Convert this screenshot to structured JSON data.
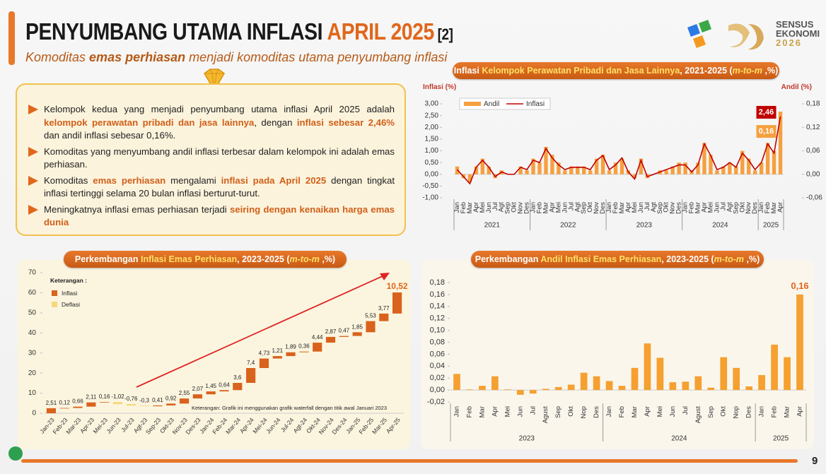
{
  "header": {
    "title": [
      "PENYUMBANG UTAMA INFLASI ",
      "APRIL 2025",
      " [2]"
    ],
    "subtitle": [
      "Komoditas ",
      "emas perhiasan",
      " menjadi komoditas utama penyumbang inflasi"
    ],
    "logo": [
      "SENSUS",
      "EKONOMI",
      "2026"
    ]
  },
  "bullets": [
    [
      {
        "text": "Kelompok kedua yang menjadi penyumbang utama inflasi April 2025 adalah "
      },
      {
        "text": "kelompok perawatan pribadi dan jasa lainnya",
        "bold": true
      },
      {
        "text": ", dengan "
      },
      {
        "text": "inflasi sebesar 2,46%",
        "bold": true
      },
      {
        "text": " dan andil inflasi sebesar 0,16%."
      }
    ],
    [
      {
        "text": "Komoditas yang menyumbang andil inflasi terbesar dalam kelompok ini adalah emas perhiasan."
      }
    ],
    [
      {
        "text": "Komoditas "
      },
      {
        "text": "emas perhiasan",
        "bold": true
      },
      {
        "text": " mengalami "
      },
      {
        "text": "inflasi pada April 2025",
        "bold": true
      },
      {
        "text": " dengan tingkat inflasi tertinggi selama 20 bulan inflasi berturut-turut."
      }
    ],
    [
      {
        "text": "Meningkatnya inflasi emas perhiasan terjadi "
      },
      {
        "text": "seiring dengan kenaikan harga emas dunia",
        "bold": true
      }
    ]
  ],
  "page_number": "9",
  "chart_data": [
    {
      "type": "combo",
      "title": [
        {
          "text": "Inflasi "
        },
        {
          "text": "Kelompok Perawatan Pribadi dan Jasa Lainnya",
          "highlight": true
        },
        {
          "text": ", 2021-2025 ("
        },
        {
          "text": "m-to-m",
          "highlight": true
        },
        {
          "text": " ,%)"
        }
      ],
      "ylabel": "Inflasi (%)",
      "y2label": "Andil (%)",
      "groups": [
        {
          "label": "2021",
          "categories": [
            "Jan",
            "Feb",
            "Mar",
            "Apr",
            "Mei",
            "Jun",
            "Jul",
            "Agt",
            "Sep",
            "Okt",
            "Nov",
            "Des"
          ]
        },
        {
          "label": "2022",
          "categories": [
            "Jan",
            "Feb",
            "Mar",
            "Apr",
            "Mei",
            "Jun",
            "Jul",
            "Agt",
            "Sep",
            "Okt",
            "Nov",
            "Des"
          ]
        },
        {
          "label": "2023",
          "categories": [
            "Jan",
            "Feb",
            "Mar",
            "Apr",
            "Mei",
            "Jun",
            "Jul",
            "Agt",
            "Sep",
            "Okt",
            "Nov",
            "Des"
          ]
        },
        {
          "label": "2024",
          "categories": [
            "Jan",
            "Feb",
            "Mar",
            "Apr",
            "Mei",
            "Jun",
            "Jul",
            "Agt",
            "Sep",
            "Okt",
            "Nov",
            "Des"
          ]
        },
        {
          "label": "2025",
          "categories": [
            "Jan",
            "Feb",
            "Mar",
            "Apr"
          ]
        }
      ],
      "series": [
        {
          "name": "Andil",
          "type": "bar",
          "axis": "y2",
          "color": "#f5a040",
          "values": [
            0.02,
            -0.01,
            -0.02,
            0.02,
            0.04,
            0.02,
            -0.01,
            0.01,
            0.0,
            0.0,
            0.02,
            0.01,
            0.04,
            0.03,
            0.07,
            0.05,
            0.03,
            0.01,
            0.02,
            0.02,
            0.02,
            0.01,
            0.04,
            0.05,
            0.01,
            0.03,
            0.04,
            0.01,
            -0.01,
            0.04,
            -0.01,
            0.0,
            0.01,
            0.01,
            0.02,
            0.03,
            0.03,
            0.01,
            0.03,
            0.08,
            0.05,
            0.01,
            0.02,
            0.03,
            0.02,
            0.06,
            0.04,
            0.01,
            0.03,
            0.08,
            0.06,
            0.16
          ],
          "value_labels": [
            null,
            null,
            null,
            null,
            null,
            null,
            null,
            null,
            null,
            null,
            null,
            null,
            null,
            null,
            null,
            null,
            null,
            null,
            null,
            null,
            null,
            null,
            null,
            null,
            null,
            null,
            null,
            null,
            null,
            null,
            null,
            null,
            null,
            null,
            null,
            null,
            null,
            null,
            null,
            null,
            null,
            null,
            null,
            null,
            null,
            null,
            null,
            null,
            null,
            null,
            null,
            "0,16"
          ]
        },
        {
          "name": "Inflasi",
          "type": "line",
          "color": "#c00000",
          "values": [
            0.2,
            -0.1,
            -0.4,
            0.3,
            0.6,
            0.3,
            -0.1,
            0.1,
            0.0,
            0.0,
            0.3,
            0.2,
            0.6,
            0.5,
            1.1,
            0.7,
            0.4,
            0.2,
            0.3,
            0.3,
            0.3,
            0.2,
            0.6,
            0.8,
            0.2,
            0.4,
            0.7,
            0.1,
            -0.2,
            0.6,
            -0.1,
            0.0,
            0.1,
            0.2,
            0.3,
            0.4,
            0.4,
            0.1,
            0.4,
            1.3,
            0.8,
            0.2,
            0.3,
            0.5,
            0.3,
            0.9,
            0.6,
            0.2,
            0.5,
            1.3,
            0.9,
            2.46
          ],
          "value_labels": [
            null,
            null,
            null,
            null,
            null,
            null,
            null,
            null,
            null,
            null,
            null,
            null,
            null,
            null,
            null,
            null,
            null,
            null,
            null,
            null,
            null,
            null,
            null,
            null,
            null,
            null,
            null,
            null,
            null,
            null,
            null,
            null,
            null,
            null,
            null,
            null,
            null,
            null,
            null,
            null,
            null,
            null,
            null,
            null,
            null,
            null,
            null,
            null,
            null,
            null,
            null,
            "2,46"
          ]
        }
      ],
      "ylim": [
        -1,
        3
      ],
      "yticks": [
        {
          "value": 3,
          "label": "3,00"
        },
        {
          "value": 2.5,
          "label": "2,50"
        },
        {
          "value": 2,
          "label": "2,00"
        },
        {
          "value": 1.5,
          "label": "1,50"
        },
        {
          "value": 1,
          "label": "1,00"
        },
        {
          "value": 0.5,
          "label": "0,50"
        },
        {
          "value": 0,
          "label": "0,00"
        },
        {
          "value": -0.5,
          "label": "-0,50"
        },
        {
          "value": -1,
          "label": "-1,00"
        }
      ],
      "y2lim": [
        -0.06,
        0.18
      ],
      "y2ticks": [
        {
          "value": 0.18,
          "label": "0,18"
        },
        {
          "value": 0.12,
          "label": "0,12"
        },
        {
          "value": 0.06,
          "label": "0,06"
        },
        {
          "value": 0,
          "label": "0,00"
        },
        {
          "value": -0.06,
          "label": "-0,06"
        }
      ],
      "legend": "top-left"
    },
    {
      "type": "waterfall",
      "title": [
        {
          "text": "Perkembangan "
        },
        {
          "text": "Inflasi Emas Perhiasan",
          "highlight": true
        },
        {
          "text": ", 2023-2025 ("
        },
        {
          "text": "m-to-m",
          "highlight": true
        },
        {
          "text": " ,%)"
        }
      ],
      "categories": [
        "Jan-23",
        "Feb-23",
        "Mar-23",
        "Apr-23",
        "Mei-23",
        "Jun-23",
        "Jul-23",
        "Agt-23",
        "Sep-23",
        "Okt-23",
        "Nov-23",
        "Des-23",
        "Jan-24",
        "Feb-24",
        "Mar-24",
        "Apr-24",
        "Mei-24",
        "Jun-24",
        "Jul-24",
        "Agt-24",
        "Okt-24",
        "Nov-24",
        "Des-24",
        "Jan-25",
        "Feb-25",
        "Mar-25",
        "Apr-25"
      ],
      "values": [
        2.51,
        0.12,
        0.66,
        2.11,
        0.16,
        -1.02,
        -0.76,
        -0.3,
        0.41,
        0.92,
        2.55,
        2.07,
        1.45,
        0.64,
        3.6,
        7.4,
        4.73,
        1.21,
        1.89,
        0.36,
        4.44,
        2.87,
        0.47,
        1.85,
        5.53,
        3.77,
        10.52
      ],
      "value_labels": [
        "2,51",
        "0,12",
        "0,66",
        "2,11",
        "0,16",
        "-1,02",
        "-0,76",
        "-0,3",
        "0,41",
        "0,92",
        "2,55",
        "2,07",
        "1,45",
        "0,64",
        "3,6",
        "7,4",
        "4,73",
        "1,21",
        "1,89",
        "0,36",
        "4,44",
        "2,87",
        "0,47",
        "1,85",
        "5,53",
        "3,77",
        "10,52"
      ],
      "increase_name": "Inflasi",
      "decrease_name": "Deflasi",
      "increase_color": "#d9621c",
      "decrease_color": "#f6d77c",
      "legend_title": "Keterangan :",
      "note": "Keterangan: Grafik ini menggunakan grafik waterfall dengan titik awal Januari 2023",
      "ylim": [
        0,
        70
      ],
      "yticks": [
        0,
        10,
        20,
        30,
        40,
        50,
        60,
        70
      ]
    },
    {
      "type": "bar",
      "title": [
        {
          "text": "Perkembangan "
        },
        {
          "text": "Andil Inflasi Emas Perhiasan",
          "highlight": true
        },
        {
          "text": ", 2023-2025 ("
        },
        {
          "text": "m-to-m",
          "highlight": true
        },
        {
          "text": " ,%)"
        }
      ],
      "groups": [
        {
          "label": "2023",
          "categories": [
            "Jan",
            "Feb",
            "Mar",
            "Apr",
            "Mei",
            "Jun",
            "Jul",
            "Agust",
            "Sep",
            "Okt",
            "Nop",
            "Des"
          ]
        },
        {
          "label": "2024",
          "categories": [
            "Jan",
            "Feb",
            "Mar",
            "Apr",
            "Mei",
            "Jun",
            "Jul",
            "Agust",
            "Sep",
            "Okt",
            "Nop",
            "Des"
          ]
        },
        {
          "label": "2025",
          "categories": [
            "Jan",
            "Feb",
            "Mar",
            "Apr"
          ]
        }
      ],
      "color": "#f5a030",
      "values": [
        0.027,
        0.001,
        0.007,
        0.023,
        0.001,
        -0.008,
        -0.006,
        0.002,
        0.005,
        0.009,
        0.029,
        0.023,
        0.015,
        0.007,
        0.037,
        0.078,
        0.054,
        0.013,
        0.014,
        0.023,
        0.004,
        0.055,
        0.037,
        0.006,
        0.025,
        0.076,
        0.055,
        0.16
      ],
      "value_labels": [
        null,
        null,
        null,
        null,
        null,
        null,
        null,
        null,
        null,
        null,
        null,
        null,
        null,
        null,
        null,
        null,
        null,
        null,
        null,
        null,
        null,
        null,
        null,
        null,
        null,
        null,
        null,
        "0,16"
      ],
      "ylim": [
        -0.02,
        0.18
      ],
      "yticks": [
        {
          "value": 0.18,
          "label": "0,18"
        },
        {
          "value": 0.16,
          "label": "0,16"
        },
        {
          "value": 0.14,
          "label": "0,14"
        },
        {
          "value": 0.12,
          "label": "0,12"
        },
        {
          "value": 0.1,
          "label": "0,10"
        },
        {
          "value": 0.08,
          "label": "0,08"
        },
        {
          "value": 0.06,
          "label": "0,06"
        },
        {
          "value": 0.04,
          "label": "0,04"
        },
        {
          "value": 0.02,
          "label": "0,02"
        },
        {
          "value": 0,
          "label": "0,00"
        },
        {
          "value": -0.02,
          "label": "-0,02"
        }
      ]
    }
  ]
}
